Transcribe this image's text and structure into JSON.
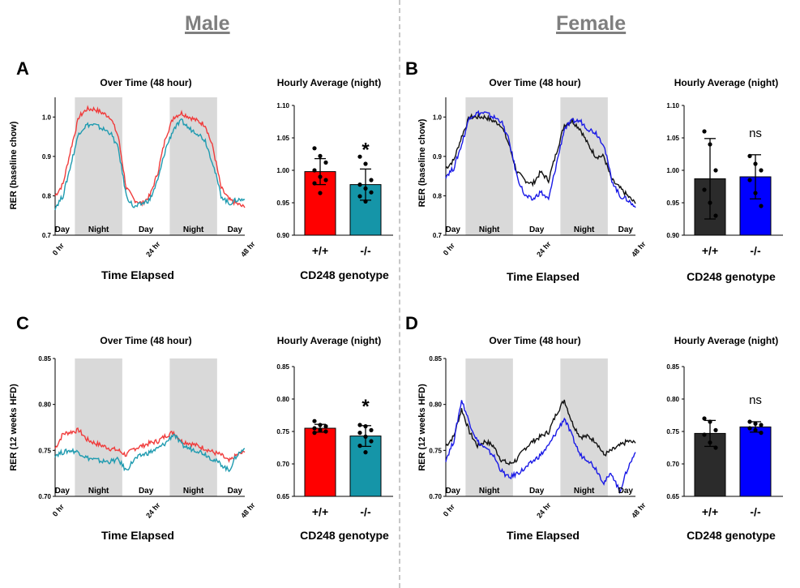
{
  "sex_titles": [
    "Male",
    "Female"
  ],
  "colors": {
    "male_wt": "#f03c3c",
    "male_ko": "#1f9bb0",
    "female_wt": "#111111",
    "female_ko": "#1a1ae6",
    "night_shade": "#d9d9d9",
    "male_bar_wt": "#ff0000",
    "male_bar_ko": "#1595a8",
    "female_bar_wt": "#2b2b2b",
    "female_bar_ko": "#0000ff"
  },
  "panels": [
    {
      "letter": "A",
      "time_title": "Over Time (48 hour)",
      "bar_title": "Hourly Average (night)",
      "ylabel": "RER (baseline chow)",
      "xlabel": "Time Elapsed",
      "bar_xlabel": "CD248 genotype",
      "elapsed_ticks": [
        "0 hr",
        "24 hr",
        "48 hr"
      ],
      "periods": [
        "Day",
        "Night",
        "Day",
        "Night",
        "Day"
      ]
    },
    {
      "letter": "B",
      "time_title": "Over Time (48 hour)",
      "bar_title": "Hourly Average (night)",
      "ylabel": "RER (baseline chow)",
      "xlabel": "Time Elapsed",
      "bar_xlabel": "CD248 genotype",
      "elapsed_ticks": [
        "0 hr",
        "24 hr",
        "48 hr"
      ],
      "periods": [
        "Day",
        "Night",
        "Day",
        "Night",
        "Day"
      ]
    },
    {
      "letter": "C",
      "time_title": "Over Time (48 hour)",
      "bar_title": "Hourly Average (night)",
      "ylabel": "RER (12 weeks HFD)",
      "xlabel": "Time Elapsed",
      "bar_xlabel": "CD248 genotype",
      "elapsed_ticks": [
        "0 hr",
        "24 hr",
        "48 hr"
      ],
      "periods": [
        "Day",
        "Night",
        "Day",
        "Night",
        "Day"
      ]
    },
    {
      "letter": "D",
      "time_title": "Over Time (48 hour)",
      "bar_title": "Hourly Average (night)",
      "ylabel": "RER (12 weeks HFD)",
      "xlabel": "Time Elapsed",
      "bar_xlabel": "CD248 genotype",
      "elapsed_ticks": [
        "0 hr",
        "24 hr",
        "48 hr"
      ],
      "periods": [
        "Day",
        "Night",
        "Day",
        "Night",
        "Day"
      ]
    }
  ],
  "chart_data": [
    {
      "id": "A-time",
      "type": "line",
      "ylim": [
        0.7,
        1.05
      ],
      "yticks": [
        "0.7",
        "0.8",
        "0.9",
        "1.0"
      ],
      "night_hours": [
        [
          5,
          17
        ],
        [
          29,
          41
        ]
      ],
      "x_hours": [
        0,
        2,
        4,
        6,
        8,
        10,
        12,
        14,
        16,
        18,
        20,
        22,
        24,
        26,
        28,
        30,
        32,
        34,
        36,
        38,
        40,
        42,
        44,
        46,
        48
      ],
      "series": [
        {
          "key": "male_wt",
          "values": [
            0.8,
            0.83,
            0.92,
            1.0,
            1.02,
            1.02,
            1.01,
            1.0,
            0.95,
            0.82,
            0.79,
            0.78,
            0.8,
            0.86,
            0.95,
            1.0,
            1.01,
            1.0,
            0.99,
            0.98,
            0.92,
            0.82,
            0.79,
            0.78,
            0.77
          ]
        },
        {
          "key": "male_ko",
          "values": [
            0.77,
            0.8,
            0.88,
            0.96,
            0.98,
            0.98,
            0.97,
            0.96,
            0.92,
            0.8,
            0.77,
            0.78,
            0.79,
            0.84,
            0.92,
            0.97,
            0.99,
            0.97,
            0.96,
            0.94,
            0.88,
            0.8,
            0.78,
            0.79,
            0.79
          ]
        }
      ]
    },
    {
      "id": "A-bar",
      "type": "bar",
      "ylim": [
        0.9,
        1.1
      ],
      "yticks": [
        "0.90",
        "0.95",
        "1.00",
        "1.05",
        "1.10"
      ],
      "categories": [
        "+/+",
        "-/-"
      ],
      "values": [
        0.998,
        0.978
      ],
      "errors": [
        0.02,
        0.024
      ],
      "colors_key": [
        "male_bar_wt",
        "male_bar_ko"
      ],
      "annotation": "*",
      "points": [
        [
          1.034,
          1.022,
          1.012,
          1.0,
          0.99,
          0.985,
          0.98,
          0.965
        ],
        [
          1.021,
          1.01,
          0.985,
          0.978,
          0.972,
          0.966,
          0.96,
          0.952
        ]
      ]
    },
    {
      "id": "B-time",
      "type": "line",
      "ylim": [
        0.7,
        1.05
      ],
      "yticks": [
        "0.7",
        "0.8",
        "0.9",
        "1.0"
      ],
      "night_hours": [
        [
          5,
          17
        ],
        [
          29,
          41
        ]
      ],
      "x_hours": [
        0,
        2,
        4,
        6,
        8,
        10,
        12,
        14,
        16,
        18,
        20,
        22,
        24,
        26,
        28,
        30,
        32,
        34,
        36,
        38,
        40,
        42,
        44,
        46,
        48
      ],
      "series": [
        {
          "key": "female_wt",
          "values": [
            0.87,
            0.89,
            0.95,
            1.0,
            1.0,
            1.0,
            0.99,
            0.98,
            0.93,
            0.86,
            0.84,
            0.83,
            0.86,
            0.84,
            0.91,
            0.98,
            0.99,
            0.97,
            0.93,
            0.9,
            0.9,
            0.84,
            0.82,
            0.8,
            0.78
          ]
        },
        {
          "key": "female_ko",
          "values": [
            0.85,
            0.87,
            0.93,
            1.0,
            1.01,
            1.01,
            1.0,
            0.99,
            0.94,
            0.85,
            0.8,
            0.79,
            0.81,
            0.79,
            0.88,
            0.97,
            0.99,
            0.99,
            0.97,
            0.96,
            0.93,
            0.84,
            0.8,
            0.79,
            0.77
          ]
        }
      ]
    },
    {
      "id": "B-bar",
      "type": "bar",
      "ylim": [
        0.9,
        1.1
      ],
      "yticks": [
        "0.90",
        "0.95",
        "1.00",
        "1.05",
        "1.10"
      ],
      "categories": [
        "+/+",
        "-/-"
      ],
      "values": [
        0.987,
        0.99
      ],
      "errors": [
        0.062,
        0.034
      ],
      "colors_key": [
        "female_bar_wt",
        "female_bar_ko"
      ],
      "annotation": "ns",
      "points": [
        [
          1.06,
          1.04,
          1.0,
          0.97,
          0.95,
          0.93
        ],
        [
          1.022,
          1.01,
          1.0,
          0.985,
          0.965,
          0.945
        ]
      ]
    },
    {
      "id": "C-time",
      "type": "line",
      "ylim": [
        0.7,
        0.85
      ],
      "yticks": [
        "0.70",
        "0.75",
        "0.80",
        "0.85"
      ],
      "night_hours": [
        [
          5,
          17
        ],
        [
          29,
          41
        ]
      ],
      "x_hours": [
        0,
        2,
        4,
        6,
        8,
        10,
        12,
        14,
        16,
        18,
        20,
        22,
        24,
        26,
        28,
        30,
        32,
        34,
        36,
        38,
        40,
        42,
        44,
        46,
        48
      ],
      "series": [
        {
          "key": "male_wt",
          "values": [
            0.752,
            0.768,
            0.77,
            0.772,
            0.762,
            0.758,
            0.755,
            0.752,
            0.75,
            0.745,
            0.752,
            0.755,
            0.758,
            0.76,
            0.766,
            0.77,
            0.76,
            0.758,
            0.755,
            0.752,
            0.748,
            0.745,
            0.738,
            0.745,
            0.748
          ]
        },
        {
          "key": "male_ko",
          "values": [
            0.745,
            0.748,
            0.75,
            0.748,
            0.742,
            0.74,
            0.738,
            0.738,
            0.74,
            0.728,
            0.74,
            0.745,
            0.748,
            0.752,
            0.758,
            0.768,
            0.756,
            0.752,
            0.75,
            0.746,
            0.74,
            0.735,
            0.728,
            0.745,
            0.752
          ]
        }
      ]
    },
    {
      "id": "C-bar",
      "type": "bar",
      "ylim": [
        0.65,
        0.85
      ],
      "yticks": [
        "0.65",
        "0.70",
        "0.75",
        "0.80",
        "0.85"
      ],
      "categories": [
        "+/+",
        "-/-"
      ],
      "values": [
        0.755,
        0.743
      ],
      "errors": [
        0.006,
        0.016
      ],
      "colors_key": [
        "male_bar_wt",
        "male_bar_ko"
      ],
      "annotation": "*",
      "points": [
        [
          0.766,
          0.76,
          0.758,
          0.755,
          0.752,
          0.75,
          0.748
        ],
        [
          0.76,
          0.758,
          0.752,
          0.748,
          0.742,
          0.735,
          0.728,
          0.718
        ]
      ]
    },
    {
      "id": "D-time",
      "type": "line",
      "ylim": [
        0.7,
        0.85
      ],
      "yticks": [
        "0.70",
        "0.75",
        "0.80",
        "0.85"
      ],
      "night_hours": [
        [
          5,
          17
        ],
        [
          29,
          41
        ]
      ],
      "x_hours": [
        0,
        2,
        4,
        6,
        8,
        10,
        12,
        14,
        16,
        18,
        20,
        22,
        24,
        26,
        28,
        30,
        32,
        34,
        36,
        38,
        40,
        42,
        44,
        46,
        48
      ],
      "series": [
        {
          "key": "female_wt",
          "values": [
            0.755,
            0.765,
            0.795,
            0.77,
            0.755,
            0.76,
            0.755,
            0.74,
            0.735,
            0.74,
            0.752,
            0.76,
            0.765,
            0.77,
            0.79,
            0.805,
            0.78,
            0.765,
            0.765,
            0.76,
            0.745,
            0.75,
            0.755,
            0.76,
            0.758
          ]
        },
        {
          "key": "female_ko",
          "values": [
            0.74,
            0.76,
            0.805,
            0.78,
            0.76,
            0.752,
            0.745,
            0.728,
            0.72,
            0.725,
            0.73,
            0.738,
            0.745,
            0.755,
            0.77,
            0.785,
            0.765,
            0.745,
            0.74,
            0.73,
            0.715,
            0.725,
            0.705,
            0.73,
            0.748
          ]
        }
      ]
    },
    {
      "id": "D-bar",
      "type": "bar",
      "ylim": [
        0.65,
        0.85
      ],
      "yticks": [
        "0.65",
        "0.70",
        "0.75",
        "0.80",
        "0.85"
      ],
      "categories": [
        "+/+",
        "-/-"
      ],
      "values": [
        0.747,
        0.757
      ],
      "errors": [
        0.02,
        0.008
      ],
      "colors_key": [
        "female_bar_wt",
        "female_bar_ko"
      ],
      "annotation": "ns",
      "points": [
        [
          0.77,
          0.765,
          0.752,
          0.745,
          0.733,
          0.725
        ],
        [
          0.765,
          0.762,
          0.76,
          0.755,
          0.752,
          0.748
        ]
      ]
    }
  ]
}
